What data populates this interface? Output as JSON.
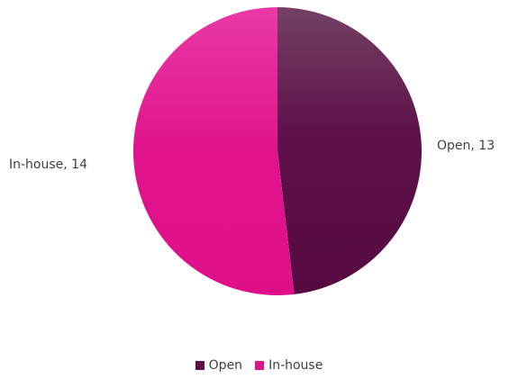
{
  "chart_data": {
    "type": "pie",
    "series": [
      {
        "slices": [
          {
            "label": "Open",
            "value": 13,
            "color": "#5c0f47",
            "data_label": "Open, 13"
          },
          {
            "label": "In-house",
            "value": 14,
            "color": "#e0138c",
            "data_label": "In-house, 14"
          }
        ]
      }
    ],
    "legend": {
      "placement": "bottom",
      "entries": [
        "Open",
        "In-house"
      ]
    }
  }
}
